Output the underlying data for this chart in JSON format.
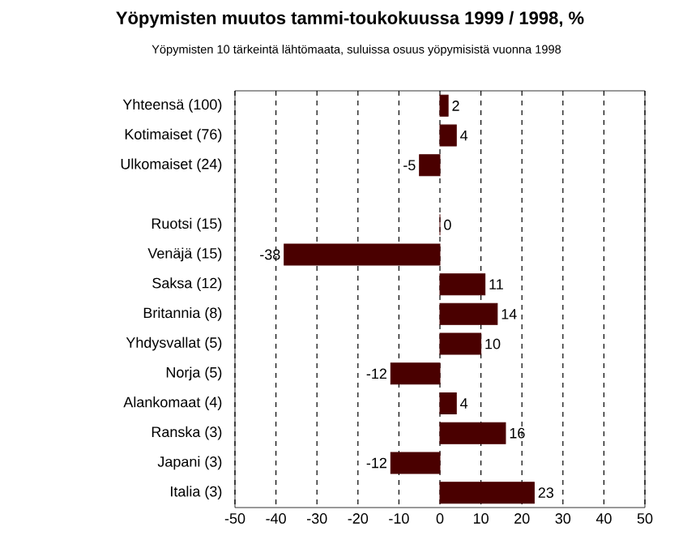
{
  "chart_data": {
    "type": "bar",
    "orientation": "horizontal",
    "title": "Yöpymisten muutos tammi-toukokuussa 1999 / 1998, %",
    "subtitle": "Yöpymisten 10 tärkeintä lähtömaata, suluissa osuus yöpymisistä vuonna 1998",
    "categories": [
      "Yhteensä (100)",
      "Kotimaiset (76)",
      "Ulkomaiset (24)",
      null,
      "Ruotsi (15)",
      "Venäjä (15)",
      "Saksa (12)",
      "Britannia (8)",
      "Yhdysvallat (5)",
      "Norja (5)",
      "Alankomaat (4)",
      "Ranska (3)",
      "Japani (3)",
      "Italia (3)"
    ],
    "values": [
      2,
      4,
      -5,
      null,
      0,
      -38,
      11,
      14,
      10,
      -12,
      4,
      16,
      -12,
      23
    ],
    "color": "#4a0000",
    "xlim": [
      -50,
      50
    ],
    "xticks": [
      -50,
      -40,
      -30,
      -20,
      -10,
      0,
      10,
      20,
      30,
      40,
      50
    ],
    "grid": "x",
    "data_labels": true
  }
}
